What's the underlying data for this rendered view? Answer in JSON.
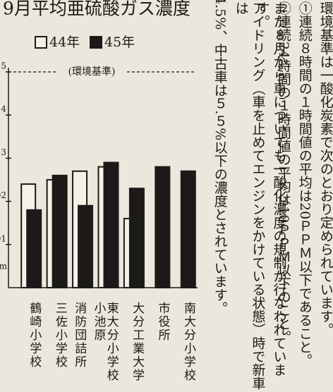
{
  "chart_data": {
    "type": "bar",
    "title": "9月平均亜硫酸ガス濃度",
    "y_unit_label": "pm",
    "reference_label": "(環境基準)",
    "reference_value": 0.05,
    "categories": [
      "鶴崎小学校",
      "三佐小学校",
      "小池原\n消防団詰所",
      "東大分小学校",
      "大分工業大学",
      "市役所",
      "南大分小学校"
    ],
    "series": [
      {
        "name": "44年",
        "color": "#f4f1e8",
        "values": [
          0.024,
          0.025,
          0.027,
          0.028,
          0.016,
          null,
          null
        ]
      },
      {
        "name": "45年",
        "color": "#1c1a18",
        "values": [
          0.018,
          0.026,
          0.019,
          0.029,
          0.023,
          0.028,
          0.027
        ]
      }
    ],
    "ylim": [
      0,
      0.05
    ],
    "yticks": [
      {
        "value": 0.01,
        "label": "01"
      },
      {
        "value": 0.02,
        "label": "02"
      },
      {
        "value": 0.03,
        "label": "3"
      },
      {
        "value": 0.04,
        "label": "4"
      },
      {
        "value": 0.05,
        "label": "5"
      }
    ]
  },
  "article": {
    "lines": [
      "環境基準は一酸化炭素で次のとおり定められています。",
      "①連続８時間の１時間値の平均は20ＰＰＭ以下であること。",
      "②連続24時間の１時間値の平均は10ＰＰＭ以下のこと。",
      "また８月から車についても一酸化濃度の規制が行なわれています。",
      "アイドリング（車を止めてエンジンをかけている状態）時で新車は",
      "4.5%、中古車は５.５%以下の濃度とされています。"
    ]
  }
}
